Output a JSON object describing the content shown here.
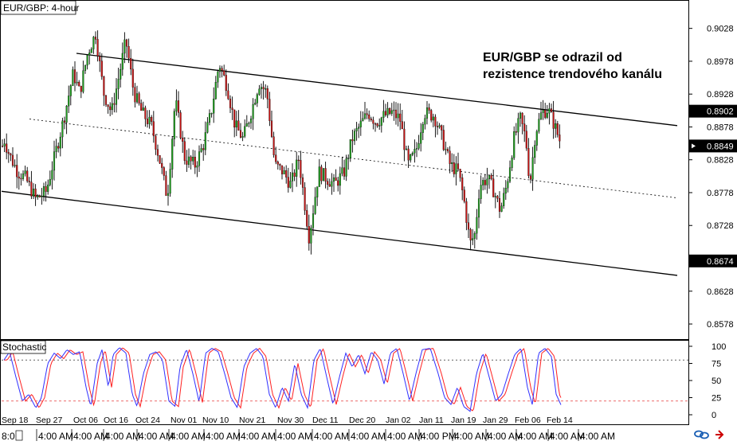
{
  "chart_data": {
    "type": "candlestick",
    "title": "EUR/GBP: 4-hour",
    "annotation": "EUR/GBP se odrazil od\nrezistence trendového kanálu",
    "price_axis": {
      "ticks": [
        "0.9028",
        "0.8978",
        "0.8928",
        "0.8878",
        "0.8828",
        "0.8778",
        "0.8728",
        "0.8628",
        "0.8578"
      ],
      "ylim": [
        0.8555,
        0.907
      ],
      "highlighted": [
        {
          "label": "0.8902",
          "style": "black-box"
        },
        {
          "label": "0.8849",
          "style": "current-price"
        },
        {
          "label": "0.8674",
          "style": "black-box"
        }
      ]
    },
    "date_labels": [
      "Sep 18",
      "Sep 27",
      "Oct 06",
      "Oct 16",
      "Oct 24",
      "Nov 01",
      "Nov 10",
      "Nov 21",
      "Nov 30",
      "Dec 11",
      "Dec 20",
      "Jan 02",
      "Jan 11",
      "Jan 19",
      "Jan 29",
      "Feb 06",
      "Feb 14"
    ],
    "time_labels": [
      "8:0",
      "4:00 AM",
      "4:00 AM",
      "4:00 AM",
      "4:00 AM",
      "4:00 AM",
      "4:00 AM",
      "4:00 AM",
      "4:00 AM",
      "4:00 AM",
      "4:00 AM",
      "4:00 AM",
      "4:00 PM",
      "4:00 AM",
      "4:00 AM",
      "4:00 AM",
      "4:00 AM",
      "4:00 AM"
    ],
    "channel": {
      "upper": [
        [
          96,
          0.899
        ],
        [
          850,
          0.888
        ]
      ],
      "mid": [
        [
          37,
          0.889
        ],
        [
          850,
          0.877
        ]
      ],
      "lower": [
        [
          2,
          0.878
        ],
        [
          850,
          0.8652
        ]
      ]
    },
    "price_anchors": [
      [
        5,
        0.886
      ],
      [
        12,
        0.8835
      ],
      [
        22,
        0.881
      ],
      [
        32,
        0.88
      ],
      [
        45,
        0.8768
      ],
      [
        58,
        0.878
      ],
      [
        68,
        0.883
      ],
      [
        80,
        0.889
      ],
      [
        92,
        0.896
      ],
      [
        100,
        0.893
      ],
      [
        110,
        0.899
      ],
      [
        120,
        0.902
      ],
      [
        130,
        0.893
      ],
      [
        140,
        0.89
      ],
      [
        150,
        0.896
      ],
      [
        158,
        0.901
      ],
      [
        168,
        0.893
      ],
      [
        178,
        0.89
      ],
      [
        190,
        0.888
      ],
      [
        200,
        0.883
      ],
      [
        210,
        0.877
      ],
      [
        220,
        0.892
      ],
      [
        232,
        0.883
      ],
      [
        245,
        0.882
      ],
      [
        255,
        0.885
      ],
      [
        265,
        0.89
      ],
      [
        275,
        0.8975
      ],
      [
        285,
        0.894
      ],
      [
        295,
        0.888
      ],
      [
        305,
        0.886
      ],
      [
        315,
        0.89
      ],
      [
        325,
        0.8945
      ],
      [
        335,
        0.893
      ],
      [
        345,
        0.882
      ],
      [
        355,
        0.881
      ],
      [
        365,
        0.879
      ],
      [
        375,
        0.883
      ],
      [
        388,
        0.871
      ],
      [
        400,
        0.881
      ],
      [
        410,
        0.88
      ],
      [
        420,
        0.879
      ],
      [
        432,
        0.881
      ],
      [
        442,
        0.886
      ],
      [
        452,
        0.888
      ],
      [
        462,
        0.89
      ],
      [
        472,
        0.8885
      ],
      [
        482,
        0.8895
      ],
      [
        492,
        0.89
      ],
      [
        502,
        0.889
      ],
      [
        512,
        0.882
      ],
      [
        522,
        0.884
      ],
      [
        532,
        0.89
      ],
      [
        545,
        0.8895
      ],
      [
        555,
        0.886
      ],
      [
        565,
        0.882
      ],
      [
        575,
        0.881
      ],
      [
        582,
        0.877
      ],
      [
        590,
        0.87
      ],
      [
        596,
        0.8715
      ],
      [
        602,
        0.879
      ],
      [
        612,
        0.88
      ],
      [
        620,
        0.878
      ],
      [
        628,
        0.875
      ],
      [
        636,
        0.879
      ],
      [
        645,
        0.886
      ],
      [
        653,
        0.889
      ],
      [
        660,
        0.886
      ],
      [
        665,
        0.879
      ],
      [
        672,
        0.887
      ],
      [
        680,
        0.89
      ],
      [
        688,
        0.8905
      ],
      [
        696,
        0.888
      ],
      [
        705,
        0.8849
      ]
    ],
    "stochastic": {
      "label": "Stochastic",
      "levels": [
        "100",
        "75",
        "50",
        "25",
        "0"
      ],
      "overbought": 80,
      "oversold": 20,
      "series": [
        {
          "name": "%K",
          "color": "#3030ff"
        },
        {
          "name": "%D",
          "color": "#ff2020"
        }
      ],
      "k_anchors": [
        [
          5,
          80
        ],
        [
          12,
          92
        ],
        [
          20,
          55
        ],
        [
          28,
          20
        ],
        [
          36,
          30
        ],
        [
          45,
          10
        ],
        [
          52,
          25
        ],
        [
          60,
          75
        ],
        [
          68,
          90
        ],
        [
          76,
          82
        ],
        [
          84,
          95
        ],
        [
          92,
          88
        ],
        [
          100,
          92
        ],
        [
          108,
          40
        ],
        [
          114,
          12
        ],
        [
          122,
          75
        ],
        [
          128,
          95
        ],
        [
          136,
          40
        ],
        [
          142,
          88
        ],
        [
          150,
          98
        ],
        [
          158,
          90
        ],
        [
          166,
          30
        ],
        [
          172,
          12
        ],
        [
          180,
          60
        ],
        [
          188,
          88
        ],
        [
          196,
          92
        ],
        [
          204,
          80
        ],
        [
          212,
          20
        ],
        [
          220,
          12
        ],
        [
          226,
          70
        ],
        [
          234,
          96
        ],
        [
          242,
          60
        ],
        [
          250,
          18
        ],
        [
          258,
          90
        ],
        [
          266,
          97
        ],
        [
          274,
          92
        ],
        [
          282,
          60
        ],
        [
          290,
          25
        ],
        [
          298,
          10
        ],
        [
          306,
          70
        ],
        [
          314,
          90
        ],
        [
          322,
          97
        ],
        [
          330,
          85
        ],
        [
          338,
          30
        ],
        [
          346,
          10
        ],
        [
          354,
          40
        ],
        [
          362,
          20
        ],
        [
          370,
          75
        ],
        [
          378,
          30
        ],
        [
          386,
          10
        ],
        [
          394,
          80
        ],
        [
          402,
          97
        ],
        [
          410,
          55
        ],
        [
          418,
          15
        ],
        [
          426,
          55
        ],
        [
          434,
          90
        ],
        [
          442,
          70
        ],
        [
          450,
          88
        ],
        [
          458,
          60
        ],
        [
          466,
          92
        ],
        [
          474,
          80
        ],
        [
          482,
          45
        ],
        [
          490,
          90
        ],
        [
          498,
          97
        ],
        [
          506,
          60
        ],
        [
          514,
          20
        ],
        [
          522,
          60
        ],
        [
          530,
          95
        ],
        [
          540,
          97
        ],
        [
          550,
          60
        ],
        [
          558,
          25
        ],
        [
          566,
          15
        ],
        [
          574,
          40
        ],
        [
          582,
          12
        ],
        [
          590,
          5
        ],
        [
          598,
          60
        ],
        [
          606,
          90
        ],
        [
          614,
          55
        ],
        [
          622,
          20
        ],
        [
          630,
          30
        ],
        [
          638,
          60
        ],
        [
          646,
          88
        ],
        [
          654,
          97
        ],
        [
          662,
          40
        ],
        [
          668,
          15
        ],
        [
          676,
          90
        ],
        [
          684,
          97
        ],
        [
          692,
          85
        ],
        [
          698,
          30
        ],
        [
          705,
          12
        ]
      ]
    }
  }
}
